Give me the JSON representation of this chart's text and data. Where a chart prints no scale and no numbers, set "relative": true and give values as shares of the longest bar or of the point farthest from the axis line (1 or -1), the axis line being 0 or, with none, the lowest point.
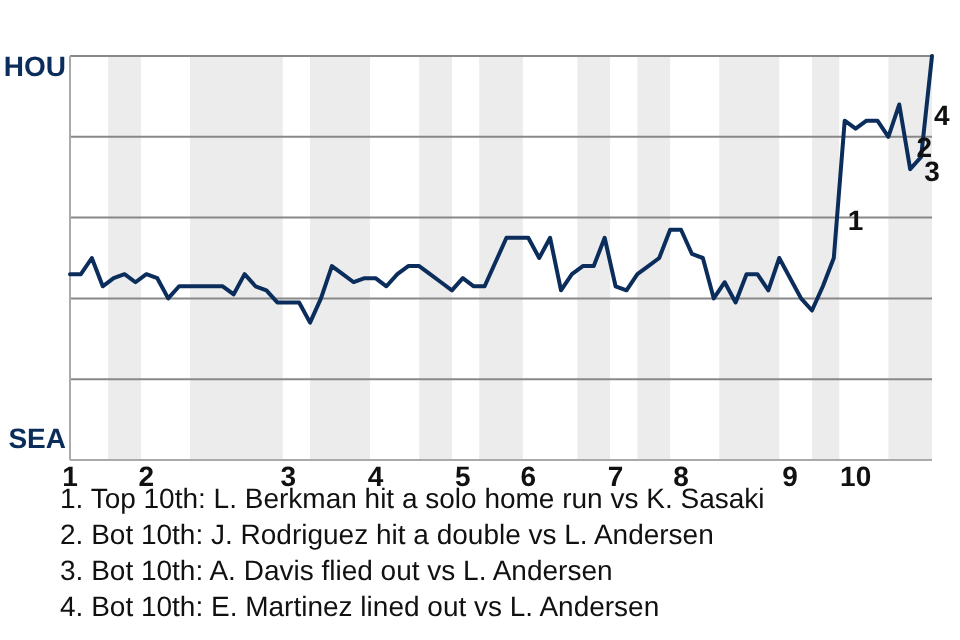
{
  "chart_data": {
    "type": "line",
    "relative": true,
    "categories": [
      "1",
      null,
      null,
      null,
      null,
      null,
      null,
      "2",
      null,
      null,
      null,
      null,
      null,
      null,
      null,
      null,
      null,
      null,
      null,
      null,
      "3",
      null,
      null,
      null,
      null,
      null,
      null,
      null,
      "4",
      null,
      null,
      null,
      null,
      null,
      null,
      null,
      "5",
      null,
      null,
      null,
      null,
      null,
      "6",
      null,
      null,
      null,
      null,
      null,
      null,
      null,
      "7",
      null,
      null,
      null,
      null,
      null,
      "8",
      null,
      null,
      null,
      null,
      null,
      null,
      null,
      null,
      null,
      "9",
      null,
      null,
      null,
      null,
      null,
      "10",
      null,
      null,
      null,
      null,
      null,
      null,
      null
    ],
    "series": [
      {
        "color": "#0b2d5b",
        "values": [
          0.46,
          0.46,
          0.5,
          0.43,
          0.45,
          0.46,
          0.44,
          0.46,
          0.45,
          0.4,
          0.43,
          0.43,
          0.43,
          0.43,
          0.43,
          0.41,
          0.46,
          0.43,
          0.42,
          0.39,
          0.39,
          0.39,
          0.34,
          0.4,
          0.48,
          0.46,
          0.44,
          0.45,
          0.45,
          0.43,
          0.46,
          0.48,
          0.48,
          0.46,
          0.44,
          0.42,
          0.45,
          0.43,
          0.43,
          0.49,
          0.55,
          0.55,
          0.55,
          0.5,
          0.55,
          0.42,
          0.46,
          0.48,
          0.48,
          0.55,
          0.43,
          0.42,
          0.46,
          0.48,
          0.5,
          0.57,
          0.57,
          0.51,
          0.5,
          0.4,
          0.44,
          0.39,
          0.46,
          0.46,
          0.42,
          0.5,
          0.45,
          0.4,
          0.37,
          0.43,
          0.5,
          0.84,
          0.82,
          0.84,
          0.84,
          0.8,
          0.88,
          0.72,
          0.75,
          1
        ]
      }
    ],
    "grid": "y",
    "annotations": [
      "HOU",
      "SEA",
      "1",
      "2",
      "3",
      "4",
      "1. Top 10th: L. Berkman hit a solo home run vs K. Sasaki",
      "2. Bot 10th: J. Rodriguez hit a double vs L. Andersen",
      "3. Bot 10th: A. Davis flied out vs L. Andersen",
      "4. Bot 10th: E. Martinez lined out vs L. Andersen"
    ]
  }
}
